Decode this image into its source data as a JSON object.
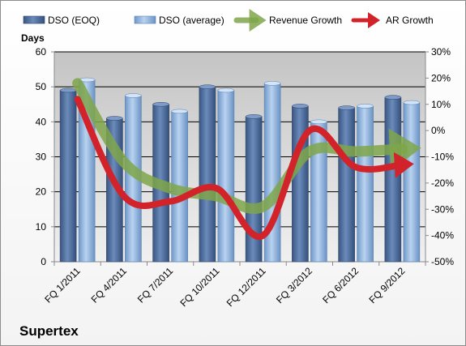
{
  "company": "Supertex",
  "chart_data": {
    "type": "bar",
    "title": "",
    "ylabel": "Days",
    "ylim": [
      0,
      60
    ],
    "y_ticks": [
      "0",
      "10",
      "20",
      "30",
      "40",
      "50",
      "60"
    ],
    "y2lim": [
      -50,
      30
    ],
    "y2_ticks": [
      "-50%",
      "-40%",
      "-30%",
      "-20%",
      "-10%",
      "0%",
      "10%",
      "20%",
      "30%"
    ],
    "categories": [
      "FQ 1/2011",
      "FQ 4/2011",
      "FQ 7/2011",
      "FQ 10/2011",
      "FQ 12/2011",
      "FQ 3/2012",
      "FQ 6/2012",
      "FQ 9/2012"
    ],
    "x_ticks": [
      "FQ 1/2011",
      "FQ 4/2011",
      "FQ 7/2011",
      "FQ 10/2011",
      "FQ 12/2011",
      "FQ 3/2012",
      "FQ 6/2012",
      "FQ 9/2012"
    ],
    "series": [
      {
        "name": "DSO (EOQ)",
        "type": "bar",
        "axis": "left",
        "color": "#4f6f9f",
        "values": [
          49,
          41,
          45,
          50,
          41.5,
          44.5,
          44,
          47
        ]
      },
      {
        "name": "DSO (average)",
        "type": "bar",
        "axis": "left",
        "color": "#8fb3de",
        "values": [
          52,
          47.5,
          43,
          49,
          51,
          40,
          44.5,
          45.5
        ]
      },
      {
        "name": "Revenue Growth",
        "type": "line",
        "axis": "right",
        "color": "#7fa64a",
        "values": [
          18,
          -12,
          -22,
          -25,
          -29,
          -8,
          -8,
          -7
        ]
      },
      {
        "name": "AR Growth",
        "type": "line",
        "axis": "right",
        "color": "#d2222a",
        "values": [
          12,
          -25,
          -27,
          -22,
          -40,
          0,
          -14,
          -13
        ]
      }
    ],
    "legend_position": "top",
    "grid": true
  }
}
